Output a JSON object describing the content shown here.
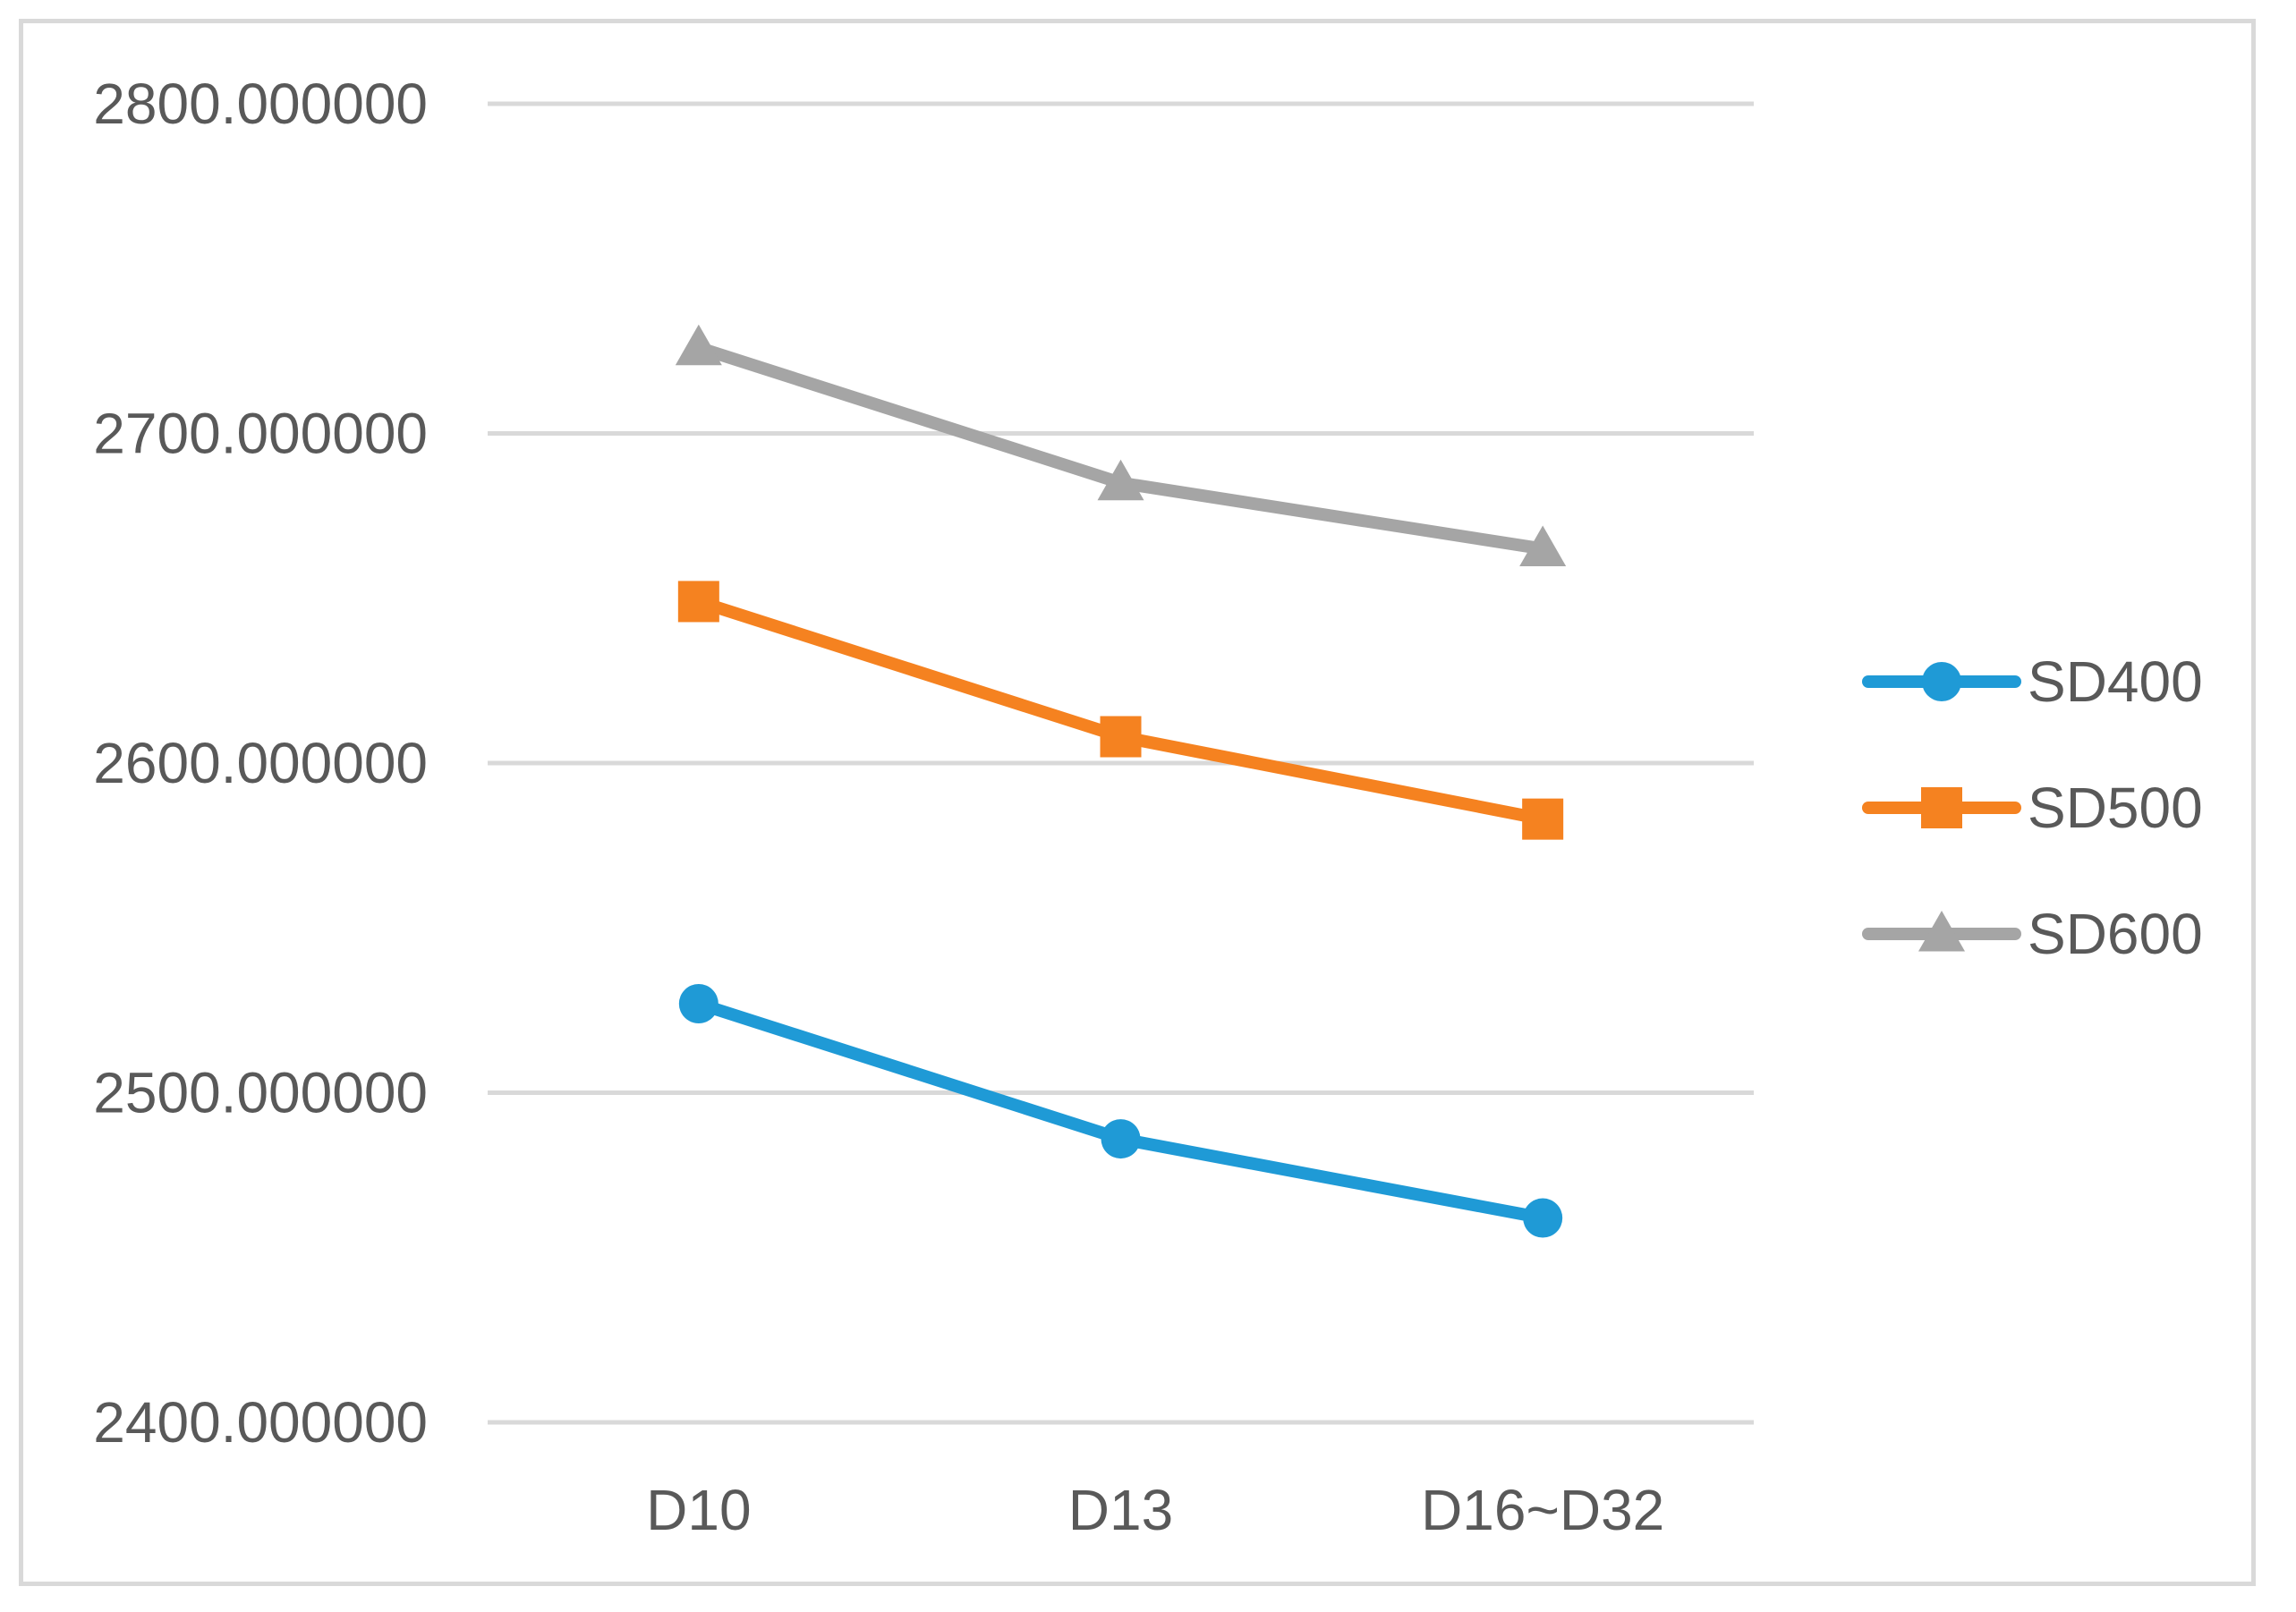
{
  "chart_data": {
    "type": "line",
    "categories": [
      "D10",
      "D13",
      "D16~D32"
    ],
    "series": [
      {
        "name": "SD400",
        "values": [
          2527,
          2486,
          2462
        ],
        "color": "#1f9ad6",
        "marker": "circle"
      },
      {
        "name": "SD500",
        "values": [
          2649,
          2608,
          2583
        ],
        "color": "#f58220",
        "marker": "square"
      },
      {
        "name": "SD600",
        "values": [
          2726,
          2685,
          2665
        ],
        "color": "#a5a5a5",
        "marker": "triangle"
      }
    ],
    "y_ticks": [
      "2400.000000",
      "2500.000000",
      "2600.000000",
      "2700.000000",
      "2800.000000"
    ],
    "ylim": [
      2400,
      2800
    ],
    "grid": true,
    "gridline_color": "#d9d9d9",
    "legend_position": "right"
  }
}
